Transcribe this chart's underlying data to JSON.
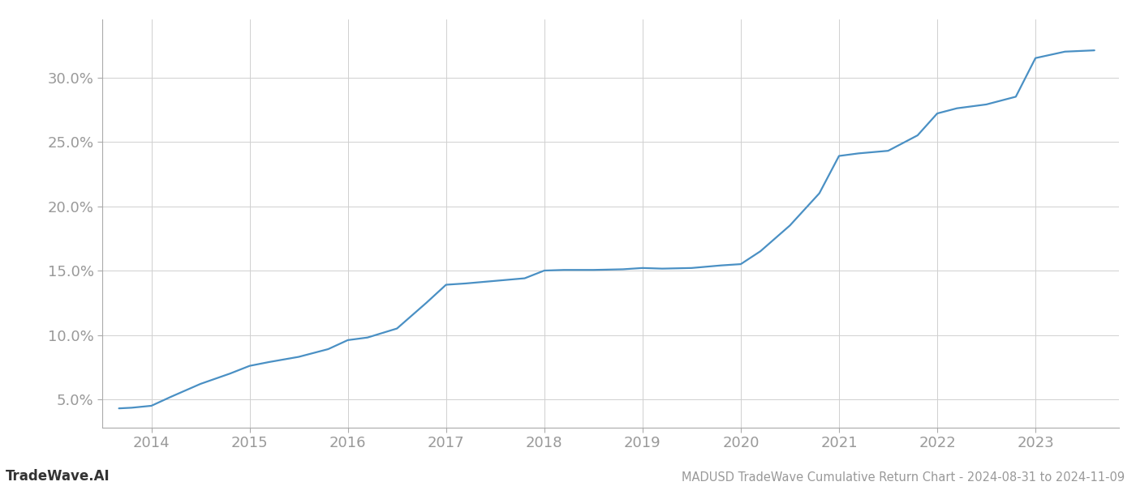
{
  "title": "MADUSD TradeWave Cumulative Return Chart - 2024-08-31 to 2024-11-09",
  "watermark": "TradeWave.AI",
  "line_color": "#4a90c4",
  "background_color": "#ffffff",
  "grid_color": "#d0d0d0",
  "x_years": [
    2013.67,
    2013.8,
    2014.0,
    2014.2,
    2014.5,
    2014.8,
    2015.0,
    2015.2,
    2015.5,
    2015.8,
    2016.0,
    2016.2,
    2016.5,
    2016.8,
    2017.0,
    2017.2,
    2017.5,
    2017.8,
    2018.0,
    2018.2,
    2018.5,
    2018.8,
    2019.0,
    2019.2,
    2019.5,
    2019.8,
    2020.0,
    2020.2,
    2020.5,
    2020.8,
    2021.0,
    2021.2,
    2021.5,
    2021.8,
    2022.0,
    2022.2,
    2022.5,
    2022.8,
    2023.0,
    2023.3,
    2023.6
  ],
  "y_values": [
    4.3,
    4.35,
    4.5,
    5.2,
    6.2,
    7.0,
    7.6,
    7.9,
    8.3,
    8.9,
    9.6,
    9.8,
    10.5,
    12.5,
    13.9,
    14.0,
    14.2,
    14.4,
    15.0,
    15.05,
    15.05,
    15.1,
    15.2,
    15.15,
    15.2,
    15.4,
    15.5,
    16.5,
    18.5,
    21.0,
    23.9,
    24.1,
    24.3,
    25.5,
    27.2,
    27.6,
    27.9,
    28.5,
    31.5,
    32.0,
    32.1
  ],
  "xlim": [
    2013.5,
    2023.85
  ],
  "ylim": [
    2.8,
    34.5
  ],
  "xticks": [
    2014,
    2015,
    2016,
    2017,
    2018,
    2019,
    2020,
    2021,
    2022,
    2023
  ],
  "yticks": [
    5.0,
    10.0,
    15.0,
    20.0,
    25.0,
    30.0
  ],
  "tick_label_color": "#999999",
  "tick_label_fontsize": 13,
  "title_fontsize": 10.5,
  "watermark_fontsize": 12,
  "line_width": 1.6
}
